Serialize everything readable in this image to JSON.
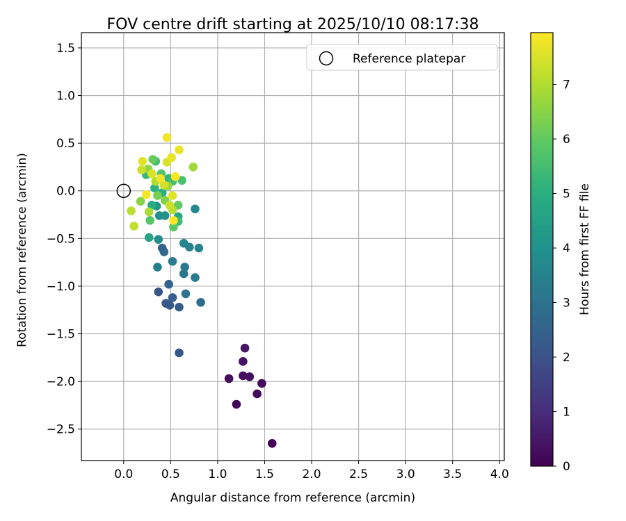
{
  "chart_data": {
    "type": "scatter",
    "title": "FOV centre drift starting at 2025/10/10 08:17:38",
    "xlabel": "Angular distance from reference (arcmin)",
    "ylabel": "Rotation from reference (arcmin)",
    "xlim": [
      -0.45,
      4.05
    ],
    "ylim": [
      -2.83,
      1.66
    ],
    "xticks": [
      0.0,
      0.5,
      1.0,
      1.5,
      2.0,
      2.5,
      3.0,
      3.5,
      4.0
    ],
    "xtick_labels": [
      "0.0",
      "0.5",
      "1.0",
      "1.5",
      "2.0",
      "2.5",
      "3.0",
      "3.5",
      "4.0"
    ],
    "yticks": [
      1.5,
      1.0,
      0.5,
      0.0,
      -0.5,
      -1.0,
      -1.5,
      -2.0,
      -2.5
    ],
    "ytick_labels": [
      "1.5",
      "1.0",
      "0.5",
      "0.0",
      "−0.5",
      "−1.0",
      "−1.5",
      "−2.0",
      "−2.5"
    ],
    "grid": true,
    "legend": {
      "position": "top-right",
      "entries": [
        "Reference platepar"
      ]
    },
    "reference_point": {
      "x": 0.0,
      "y": 0.0
    },
    "colorbar": {
      "label": "Hours from first FF file",
      "range": [
        0,
        7.95
      ],
      "ticks": [
        0,
        1,
        2,
        3,
        4,
        5,
        6,
        7
      ],
      "tick_labels": [
        "0",
        "1",
        "2",
        "3",
        "4",
        "5",
        "6",
        "7"
      ],
      "colormap": "viridis"
    },
    "points": [
      {
        "x": 1.58,
        "y": -2.65,
        "h": 0.05
      },
      {
        "x": 1.2,
        "y": -2.24,
        "h": 0.1
      },
      {
        "x": 1.42,
        "y": -2.13,
        "h": 0.15
      },
      {
        "x": 1.47,
        "y": -2.02,
        "h": 0.2
      },
      {
        "x": 1.12,
        "y": -1.97,
        "h": 0.25
      },
      {
        "x": 1.27,
        "y": -1.94,
        "h": 0.3
      },
      {
        "x": 1.34,
        "y": -1.95,
        "h": 0.35
      },
      {
        "x": 1.27,
        "y": -1.79,
        "h": 0.4
      },
      {
        "x": 1.29,
        "y": -1.65,
        "h": 0.45
      },
      {
        "x": 0.59,
        "y": -1.7,
        "h": 2.1
      },
      {
        "x": 0.37,
        "y": -1.06,
        "h": 2.1
      },
      {
        "x": 0.45,
        "y": -1.18,
        "h": 2.2
      },
      {
        "x": 0.49,
        "y": -1.2,
        "h": 2.25
      },
      {
        "x": 0.59,
        "y": -1.22,
        "h": 2.3
      },
      {
        "x": 0.52,
        "y": -1.12,
        "h": 2.4
      },
      {
        "x": 0.48,
        "y": -0.98,
        "h": 2.5
      },
      {
        "x": 0.41,
        "y": -0.6,
        "h": 2.5
      },
      {
        "x": 0.43,
        "y": -0.64,
        "h": 2.6
      },
      {
        "x": 0.82,
        "y": -1.17,
        "h": 2.8
      },
      {
        "x": 0.66,
        "y": -1.08,
        "h": 3.0
      },
      {
        "x": 0.64,
        "y": -0.87,
        "h": 3.1
      },
      {
        "x": 0.65,
        "y": -0.8,
        "h": 3.2
      },
      {
        "x": 0.76,
        "y": -0.91,
        "h": 3.3
      },
      {
        "x": 0.52,
        "y": -0.74,
        "h": 3.3
      },
      {
        "x": 0.36,
        "y": -0.8,
        "h": 3.4
      },
      {
        "x": 0.8,
        "y": -0.6,
        "h": 3.5
      },
      {
        "x": 0.7,
        "y": -0.59,
        "h": 3.5
      },
      {
        "x": 0.64,
        "y": -0.55,
        "h": 3.6
      },
      {
        "x": 0.76,
        "y": -0.19,
        "h": 3.7
      },
      {
        "x": 0.37,
        "y": -0.51,
        "h": 3.8
      },
      {
        "x": 0.38,
        "y": -0.26,
        "h": 3.9
      },
      {
        "x": 0.44,
        "y": -0.26,
        "h": 4.0
      },
      {
        "x": 0.35,
        "y": -0.16,
        "h": 4.2
      },
      {
        "x": 0.27,
        "y": -0.49,
        "h": 4.6
      },
      {
        "x": 0.58,
        "y": -0.27,
        "h": 4.7
      },
      {
        "x": 0.3,
        "y": -0.15,
        "h": 4.9
      },
      {
        "x": 0.41,
        "y": -0.02,
        "h": 5.0
      },
      {
        "x": 0.33,
        "y": 0.03,
        "h": 5.1
      },
      {
        "x": 0.48,
        "y": 0.13,
        "h": 5.2
      },
      {
        "x": 0.24,
        "y": 0.17,
        "h": 5.3
      },
      {
        "x": 0.58,
        "y": -0.32,
        "h": 5.4
      },
      {
        "x": 0.34,
        "y": 0.31,
        "h": 5.5
      },
      {
        "x": 0.52,
        "y": 0.1,
        "h": 5.5
      },
      {
        "x": 0.62,
        "y": 0.11,
        "h": 5.6
      },
      {
        "x": 0.4,
        "y": 0.18,
        "h": 5.7
      },
      {
        "x": 0.28,
        "y": -0.31,
        "h": 5.8
      },
      {
        "x": 0.53,
        "y": -0.38,
        "h": 5.9
      },
      {
        "x": 0.58,
        "y": -0.15,
        "h": 6.0
      },
      {
        "x": 0.31,
        "y": 0.33,
        "h": 6.1
      },
      {
        "x": 0.36,
        "y": -0.05,
        "h": 6.3
      },
      {
        "x": 0.44,
        "y": -0.1,
        "h": 6.4
      },
      {
        "x": 0.18,
        "y": -0.11,
        "h": 6.5
      },
      {
        "x": 0.26,
        "y": 0.23,
        "h": 6.6
      },
      {
        "x": 0.47,
        "y": 0.05,
        "h": 6.7
      },
      {
        "x": 0.74,
        "y": 0.25,
        "h": 6.8
      },
      {
        "x": 0.27,
        "y": -0.22,
        "h": 6.9
      },
      {
        "x": 0.34,
        "y": 0.1,
        "h": 7.0
      },
      {
        "x": 0.52,
        "y": -0.2,
        "h": 7.1
      },
      {
        "x": 0.08,
        "y": -0.21,
        "h": 7.1
      },
      {
        "x": 0.11,
        "y": -0.37,
        "h": 7.2
      },
      {
        "x": 0.19,
        "y": 0.22,
        "h": 7.3
      },
      {
        "x": 0.49,
        "y": -0.15,
        "h": 7.3
      },
      {
        "x": 0.43,
        "y": 0.06,
        "h": 7.4
      },
      {
        "x": 0.3,
        "y": 0.18,
        "h": 7.5
      },
      {
        "x": 0.46,
        "y": 0.3,
        "h": 7.5
      },
      {
        "x": 0.2,
        "y": 0.31,
        "h": 7.6
      },
      {
        "x": 0.52,
        "y": -0.05,
        "h": 7.6
      },
      {
        "x": 0.51,
        "y": 0.35,
        "h": 7.7
      },
      {
        "x": 0.59,
        "y": 0.43,
        "h": 7.7
      },
      {
        "x": 0.46,
        "y": 0.56,
        "h": 7.8
      },
      {
        "x": 0.39,
        "y": 0.13,
        "h": 7.8
      },
      {
        "x": 0.24,
        "y": -0.04,
        "h": 7.85
      },
      {
        "x": 0.55,
        "y": 0.15,
        "h": 7.9
      },
      {
        "x": 0.53,
        "y": -0.31,
        "h": 7.9
      }
    ]
  }
}
